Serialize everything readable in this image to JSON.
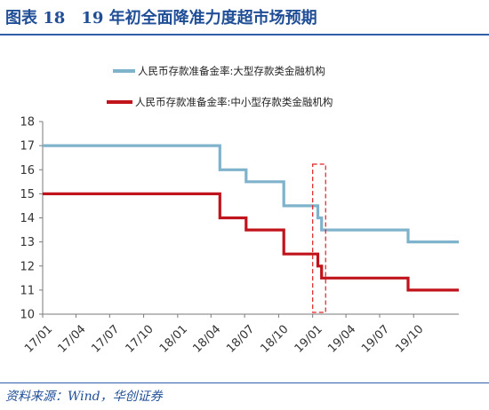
{
  "figure": {
    "title": "图表 18　19 年初全面降准力度超市场预期",
    "source": "资料来源：Wind，华创证券"
  },
  "chart_data": {
    "type": "line",
    "y_axis": {
      "ylim": [
        10,
        18
      ],
      "ticks": [
        10,
        11,
        12,
        13,
        14,
        15,
        16,
        17,
        18
      ]
    },
    "x_axis": {
      "range": [
        "2017-01-01",
        "2020-01-31"
      ],
      "tick_dates": [
        "2017-01-01",
        "2017-04-01",
        "2017-07-01",
        "2017-10-01",
        "2018-01-01",
        "2018-04-01",
        "2018-07-01",
        "2018-10-01",
        "2019-01-01",
        "2019-04-01",
        "2019-07-01",
        "2019-10-01"
      ],
      "tick_labels": [
        "17/01",
        "17/04",
        "17/07",
        "17/10",
        "18/01",
        "18/04",
        "18/07",
        "18/10",
        "19/01",
        "19/04",
        "19/07",
        "19/10"
      ]
    },
    "grid": false,
    "legend_position": "top",
    "series": [
      {
        "name": "人民币存款准备金率:大型存款类金融机构",
        "color": "#7fb3cc",
        "points": [
          [
            "2017-01-01",
            17.0
          ],
          [
            "2018-04-25",
            16.0
          ],
          [
            "2018-07-05",
            15.5
          ],
          [
            "2018-10-15",
            14.5
          ],
          [
            "2019-01-15",
            14.0
          ],
          [
            "2019-01-25",
            13.5
          ],
          [
            "2019-09-16",
            13.0
          ],
          [
            "2020-01-31",
            13.0
          ]
        ]
      },
      {
        "name": "人民币存款准备金率:中小型存款类金融机构",
        "color": "#c0131b",
        "points": [
          [
            "2017-01-01",
            15.0
          ],
          [
            "2018-04-25",
            14.0
          ],
          [
            "2018-07-05",
            13.5
          ],
          [
            "2018-10-15",
            12.5
          ],
          [
            "2019-01-15",
            12.0
          ],
          [
            "2019-01-25",
            11.5
          ],
          [
            "2019-09-16",
            11.0
          ],
          [
            "2020-01-31",
            11.0
          ]
        ]
      }
    ],
    "highlight_box": {
      "x_range": [
        "2019-01-01",
        "2019-02-05"
      ],
      "y_range": [
        10,
        18
      ],
      "color": "#e02020",
      "style": "dashed"
    }
  }
}
